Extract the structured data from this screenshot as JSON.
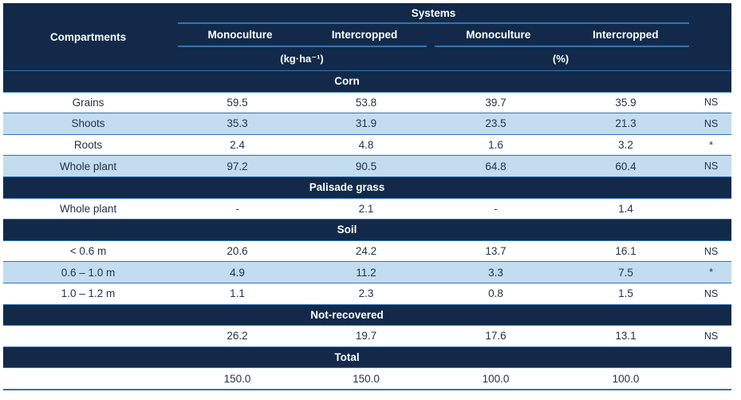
{
  "colors": {
    "header_bg": "#12294A",
    "row_stripe": "#C4DCF0",
    "divider_line": "#2E75B6",
    "header_text": "#FFFFFF",
    "body_text": "#223349"
  },
  "header": {
    "compartments_label": "Compartments",
    "systems_label": "Systems",
    "groups": [
      {
        "unit": "(kg·ha⁻¹)",
        "columns": [
          "Monoculture",
          "Intercropped"
        ]
      },
      {
        "unit": "(%)",
        "columns": [
          "Monoculture",
          "Intercropped"
        ]
      }
    ]
  },
  "sections": [
    {
      "title": "Corn",
      "rows": [
        {
          "label": "Grains",
          "values": [
            "59.5",
            "53.8",
            "39.7",
            "35.9"
          ],
          "sig": "NS"
        },
        {
          "label": "Shoots",
          "values": [
            "35.3",
            "31.9",
            "23.5",
            "21.3"
          ],
          "sig": "NS"
        },
        {
          "label": "Roots",
          "values": [
            "2.4",
            "4.8",
            "1.6",
            "3.2"
          ],
          "sig": "*"
        },
        {
          "label": "Whole plant",
          "values": [
            "97.2",
            "90.5",
            "64.8",
            "60.4"
          ],
          "sig": "NS"
        }
      ]
    },
    {
      "title": "Palisade grass",
      "rows": [
        {
          "label": "Whole plant",
          "values": [
            "-",
            "2.1",
            "-",
            "1.4"
          ],
          "sig": ""
        }
      ]
    },
    {
      "title": "Soil",
      "rows": [
        {
          "label": "< 0.6 m",
          "values": [
            "20.6",
            "24.2",
            "13.7",
            "16.1"
          ],
          "sig": "NS"
        },
        {
          "label": "0.6 – 1.0 m",
          "values": [
            "4.9",
            "11.2",
            "3.3",
            "7.5"
          ],
          "sig": "*"
        },
        {
          "label": "1.0 – 1.2 m",
          "values": [
            "1.1",
            "2.3",
            "0.8",
            "1.5"
          ],
          "sig": "NS"
        }
      ]
    },
    {
      "title": "Not-recovered",
      "rows": [
        {
          "label": "",
          "values": [
            "26.2",
            "19.7",
            "17.6",
            "13.1"
          ],
          "sig": "NS"
        }
      ]
    },
    {
      "title": "Total",
      "rows": [
        {
          "label": "",
          "values": [
            "150.0",
            "150.0",
            "100.0",
            "100.0"
          ],
          "sig": ""
        }
      ]
    }
  ]
}
